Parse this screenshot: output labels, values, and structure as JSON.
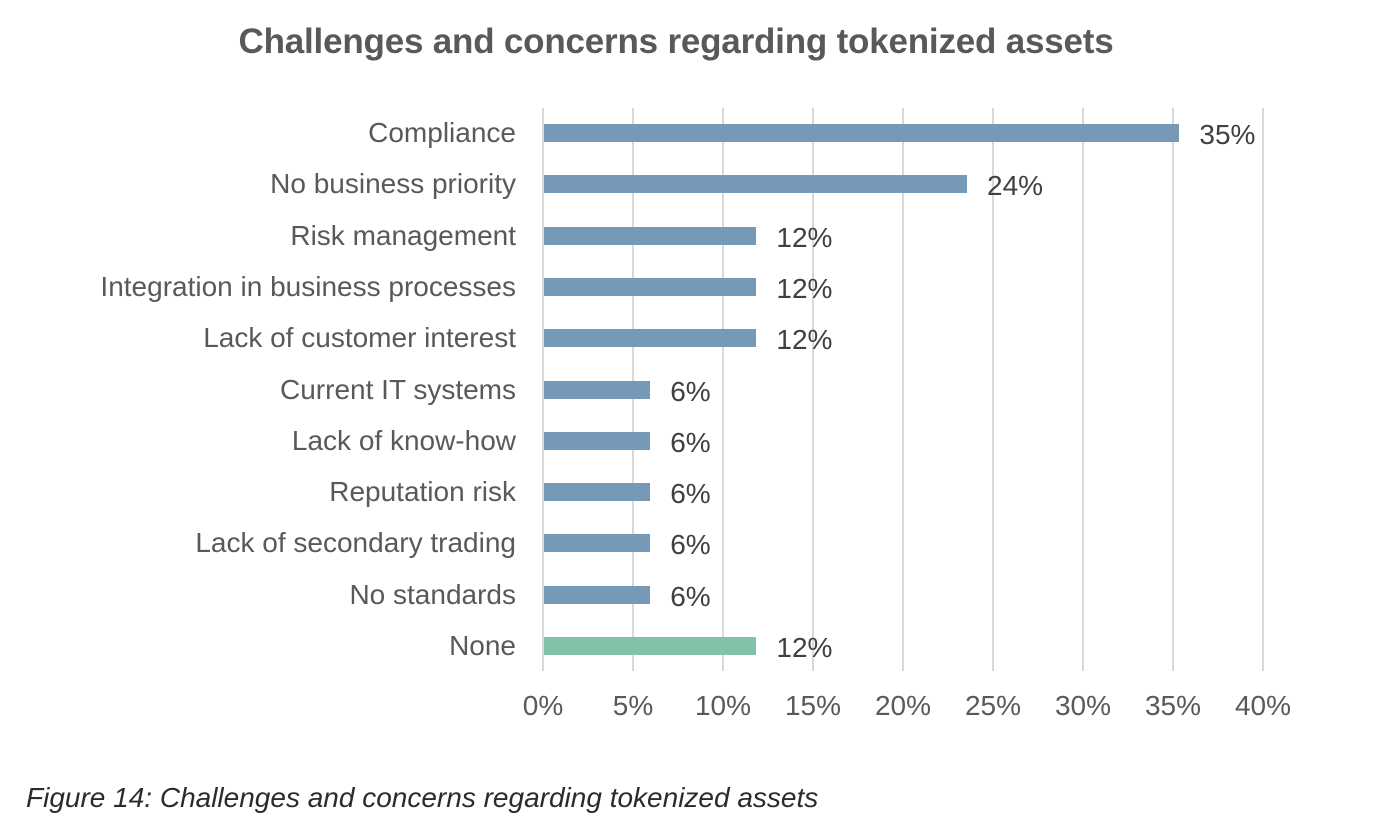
{
  "chart_data": {
    "type": "bar",
    "orientation": "horizontal",
    "title": "Challenges and concerns regarding tokenized assets",
    "xlabel": "",
    "ylabel": "",
    "xlim": [
      0,
      40
    ],
    "x_ticks": [
      "0%",
      "5%",
      "10%",
      "15%",
      "20%",
      "25%",
      "30%",
      "35%",
      "40%"
    ],
    "grid": "vertical",
    "legend": "none",
    "categories": [
      "Compliance",
      "No business priority",
      "Risk management",
      "Integration in business processes",
      "Lack of customer interest",
      "Current IT systems",
      "Lack of know-how",
      "Reputation risk",
      "Lack of secondary trading",
      "No standards",
      "None"
    ],
    "values": [
      35.3,
      23.5,
      11.8,
      11.8,
      11.8,
      5.9,
      5.9,
      5.9,
      5.9,
      5.9,
      11.8
    ],
    "value_labels": [
      "35%",
      "24%",
      "12%",
      "12%",
      "12%",
      "6%",
      "6%",
      "6%",
      "6%",
      "6%",
      "12%"
    ],
    "colors": [
      "#7799b8",
      "#7799b8",
      "#7799b8",
      "#7799b8",
      "#7799b8",
      "#7799b8",
      "#7799b8",
      "#7799b8",
      "#7799b8",
      "#7799b8",
      "#82c2a9"
    ]
  },
  "title": "Challenges and concerns regarding tokenized assets",
  "caption": "Figure 14: Challenges and concerns regarding tokenized assets",
  "colors": {
    "bar_primary": "#7799b8",
    "bar_none": "#82c2a9",
    "gridline": "#d9d9d9",
    "text": "#595959"
  }
}
